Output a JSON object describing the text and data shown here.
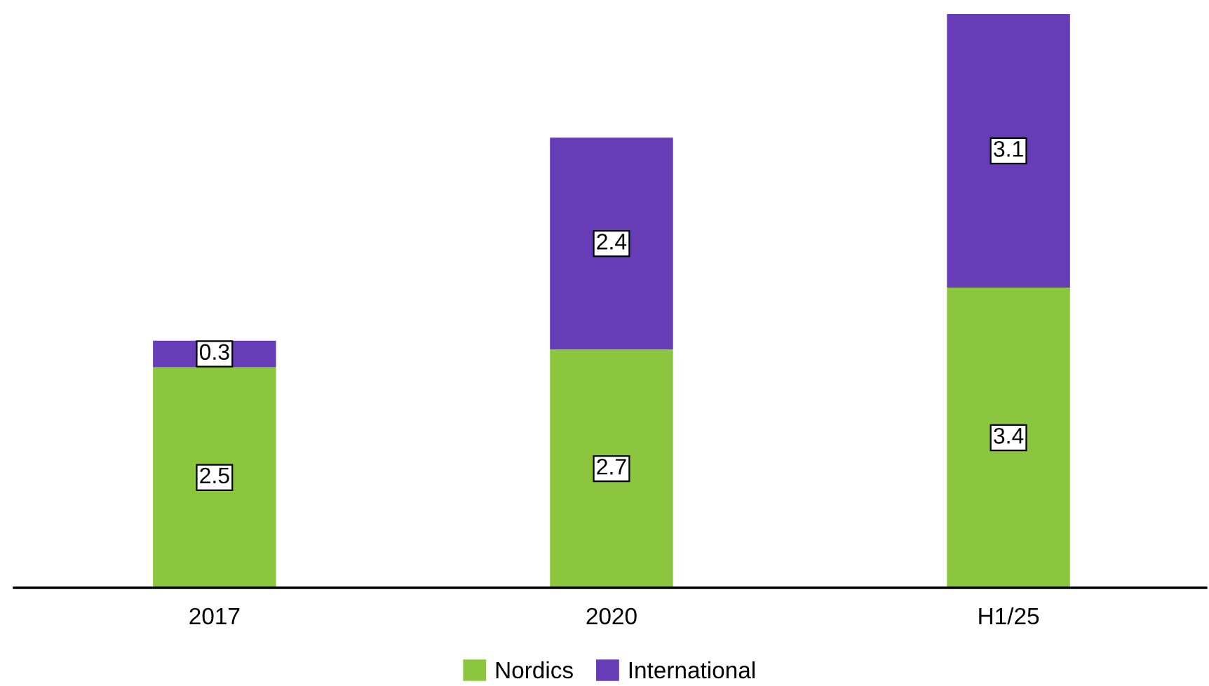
{
  "chart_data": {
    "type": "bar",
    "stacked": true,
    "data_labels": true,
    "legend": "bottom",
    "grid": false,
    "tick_labels": "x",
    "categories": [
      "2017",
      "2020",
      "H1/25"
    ],
    "series": [
      {
        "name": "Nordics",
        "color": "#8cc63f",
        "values": [
          2.5,
          2.7,
          3.4
        ]
      },
      {
        "name": "International",
        "color": "#663db7",
        "values": [
          0.3,
          2.4,
          3.1
        ]
      }
    ]
  }
}
